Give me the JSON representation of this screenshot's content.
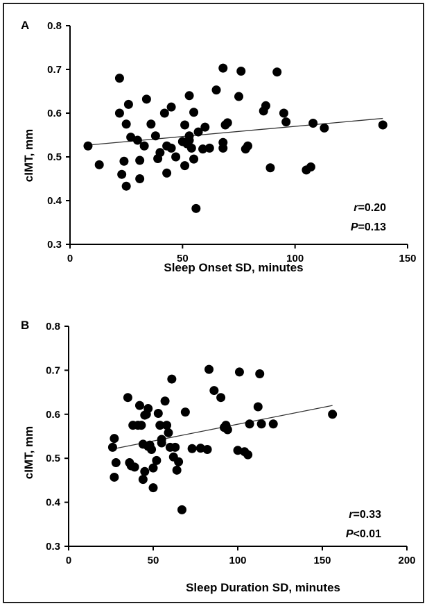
{
  "chart_data": [
    {
      "type": "scatter",
      "panel": "A",
      "xlabel": "Sleep Onset SD, minutes",
      "ylabel": "cIMT, mm",
      "xlim": [
        0,
        150
      ],
      "ylim": [
        0.3,
        0.8
      ],
      "xticks": [
        0,
        50,
        100,
        150
      ],
      "yticks": [
        0.3,
        0.4,
        0.5,
        0.6,
        0.7,
        0.8
      ],
      "regression": {
        "x": [
          8,
          139
        ],
        "y": [
          0.527,
          0.588
        ]
      },
      "stats": {
        "r_symbol": "r",
        "r_text": "=0.20",
        "p_symbol": "P",
        "p_text": "=0.13"
      },
      "points": [
        [
          8,
          0.525
        ],
        [
          13,
          0.482
        ],
        [
          22,
          0.68
        ],
        [
          22,
          0.6
        ],
        [
          23,
          0.46
        ],
        [
          24,
          0.49
        ],
        [
          25,
          0.575
        ],
        [
          25,
          0.433
        ],
        [
          26,
          0.62
        ],
        [
          27,
          0.545
        ],
        [
          30,
          0.538
        ],
        [
          31,
          0.492
        ],
        [
          31,
          0.45
        ],
        [
          33,
          0.525
        ],
        [
          34,
          0.632
        ],
        [
          36,
          0.575
        ],
        [
          38,
          0.548
        ],
        [
          39,
          0.496
        ],
        [
          40,
          0.51
        ],
        [
          42,
          0.6
        ],
        [
          43,
          0.525
        ],
        [
          43,
          0.463
        ],
        [
          45,
          0.614
        ],
        [
          45,
          0.52
        ],
        [
          47,
          0.5
        ],
        [
          50,
          0.535
        ],
        [
          51,
          0.573
        ],
        [
          51,
          0.48
        ],
        [
          52,
          0.53
        ],
        [
          53,
          0.64
        ],
        [
          53,
          0.548
        ],
        [
          53,
          0.538
        ],
        [
          54,
          0.52
        ],
        [
          55,
          0.602
        ],
        [
          55,
          0.495
        ],
        [
          56,
          0.382
        ],
        [
          57,
          0.557
        ],
        [
          59,
          0.518
        ],
        [
          60,
          0.568
        ],
        [
          62,
          0.52
        ],
        [
          65,
          0.653
        ],
        [
          68,
          0.703
        ],
        [
          68,
          0.533
        ],
        [
          68,
          0.52
        ],
        [
          69,
          0.573
        ],
        [
          70,
          0.578
        ],
        [
          75,
          0.638
        ],
        [
          76,
          0.696
        ],
        [
          78,
          0.518
        ],
        [
          79,
          0.525
        ],
        [
          86,
          0.605
        ],
        [
          87,
          0.617
        ],
        [
          89,
          0.475
        ],
        [
          92,
          0.694
        ],
        [
          95,
          0.6
        ],
        [
          96,
          0.58
        ],
        [
          105,
          0.47
        ],
        [
          107,
          0.477
        ],
        [
          108,
          0.577
        ],
        [
          113,
          0.566
        ],
        [
          139,
          0.573
        ]
      ]
    },
    {
      "type": "scatter",
      "panel": "B",
      "xlabel": "Sleep Duration SD, minutes",
      "ylabel": "cIMT, mm",
      "xlim": [
        0,
        200
      ],
      "ylim": [
        0.3,
        0.8
      ],
      "xticks": [
        0,
        50,
        100,
        150,
        200
      ],
      "yticks": [
        0.3,
        0.4,
        0.5,
        0.6,
        0.7,
        0.8
      ],
      "regression": {
        "x": [
          26,
          156
        ],
        "y": [
          0.521,
          0.62
        ]
      },
      "stats": {
        "r_symbol": "r",
        "r_text": "=0.33",
        "p_symbol": "P",
        "p_text": "<0.01"
      },
      "points": [
        [
          26,
          0.525
        ],
        [
          27,
          0.545
        ],
        [
          27,
          0.457
        ],
        [
          28,
          0.49
        ],
        [
          35,
          0.638
        ],
        [
          36,
          0.49
        ],
        [
          37,
          0.483
        ],
        [
          38,
          0.575
        ],
        [
          39,
          0.48
        ],
        [
          41,
          0.575
        ],
        [
          42,
          0.62
        ],
        [
          43,
          0.575
        ],
        [
          44,
          0.452
        ],
        [
          44,
          0.532
        ],
        [
          45,
          0.47
        ],
        [
          45,
          0.598
        ],
        [
          46,
          0.6
        ],
        [
          47,
          0.527
        ],
        [
          47,
          0.613
        ],
        [
          48,
          0.53
        ],
        [
          49,
          0.52
        ],
        [
          50,
          0.478
        ],
        [
          50,
          0.433
        ],
        [
          52,
          0.495
        ],
        [
          53,
          0.602
        ],
        [
          54,
          0.575
        ],
        [
          55,
          0.543
        ],
        [
          55,
          0.535
        ],
        [
          57,
          0.63
        ],
        [
          58,
          0.575
        ],
        [
          59,
          0.558
        ],
        [
          60,
          0.525
        ],
        [
          61,
          0.68
        ],
        [
          62,
          0.503
        ],
        [
          63,
          0.525
        ],
        [
          64,
          0.473
        ],
        [
          65,
          0.492
        ],
        [
          67,
          0.383
        ],
        [
          69,
          0.605
        ],
        [
          73,
          0.522
        ],
        [
          78,
          0.523
        ],
        [
          82,
          0.52
        ],
        [
          83,
          0.702
        ],
        [
          86,
          0.654
        ],
        [
          90,
          0.638
        ],
        [
          92,
          0.57
        ],
        [
          93,
          0.575
        ],
        [
          94,
          0.565
        ],
        [
          100,
          0.518
        ],
        [
          101,
          0.696
        ],
        [
          104,
          0.515
        ],
        [
          106,
          0.508
        ],
        [
          107,
          0.578
        ],
        [
          112,
          0.617
        ],
        [
          113,
          0.692
        ],
        [
          114,
          0.578
        ],
        [
          121,
          0.578
        ],
        [
          156,
          0.6
        ]
      ]
    }
  ]
}
